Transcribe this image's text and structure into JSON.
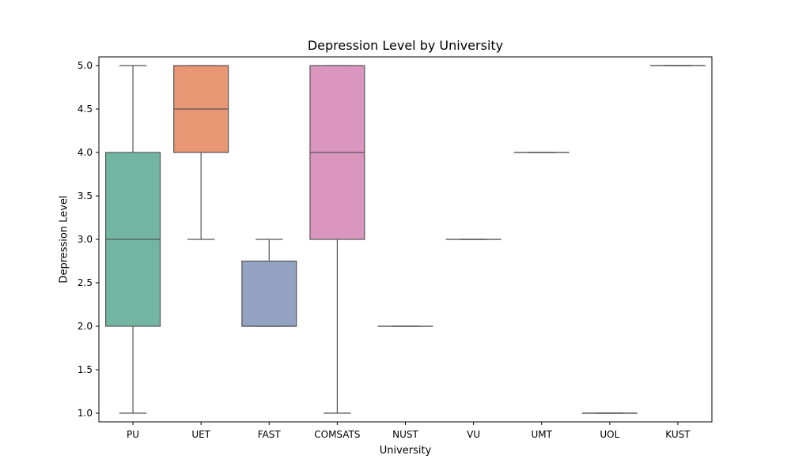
{
  "chart_data": {
    "type": "box",
    "title": "Depression Level by University",
    "xlabel": "University",
    "ylabel": "Depression Level",
    "ylim": [
      0.9,
      5.1
    ],
    "yticks": [
      1.0,
      1.5,
      2.0,
      2.5,
      3.0,
      3.5,
      4.0,
      4.5,
      5.0
    ],
    "ytick_labels": [
      "1.0",
      "1.5",
      "2.0",
      "2.5",
      "3.0",
      "3.5",
      "4.0",
      "4.5",
      "5.0"
    ],
    "grid": false,
    "categories": [
      "PU",
      "UET",
      "FAST",
      "COMSATS",
      "NUST",
      "VU",
      "UMT",
      "UOL",
      "KUST"
    ],
    "boxes": [
      {
        "category": "PU",
        "whisker_low": 1.0,
        "q1": 2.0,
        "median": 3.0,
        "q3": 4.0,
        "whisker_high": 5.0,
        "color": "#72b6a1"
      },
      {
        "category": "UET",
        "whisker_low": 3.0,
        "q1": 4.0,
        "median": 4.5,
        "q3": 5.0,
        "whisker_high": 5.0,
        "color": "#e99675"
      },
      {
        "category": "FAST",
        "whisker_low": 2.0,
        "q1": 2.0,
        "median": 2.0,
        "q3": 2.75,
        "whisker_high": 3.0,
        "color": "#95a3c3"
      },
      {
        "category": "COMSATS",
        "whisker_low": 1.0,
        "q1": 3.0,
        "median": 4.0,
        "q3": 5.0,
        "whisker_high": 5.0,
        "color": "#db96c0"
      },
      {
        "category": "NUST",
        "whisker_low": 2.0,
        "q1": 2.0,
        "median": 2.0,
        "q3": 2.0,
        "whisker_high": 2.0,
        "color": "#a9d063"
      },
      {
        "category": "VU",
        "whisker_low": 3.0,
        "q1": 3.0,
        "median": 3.0,
        "q3": 3.0,
        "whisker_high": 3.0,
        "color": "#f6d832"
      },
      {
        "category": "UMT",
        "whisker_low": 4.0,
        "q1": 4.0,
        "median": 4.0,
        "q3": 4.0,
        "whisker_high": 4.0,
        "color": "#e1c59a"
      },
      {
        "category": "UOL",
        "whisker_low": 1.0,
        "q1": 1.0,
        "median": 1.0,
        "q3": 1.0,
        "whisker_high": 1.0,
        "color": "#b3b3b3"
      },
      {
        "category": "KUST",
        "whisker_low": 5.0,
        "q1": 5.0,
        "median": 5.0,
        "q3": 5.0,
        "whisker_high": 5.0,
        "color": "#72b6a1"
      }
    ],
    "line_color": "#555555"
  }
}
